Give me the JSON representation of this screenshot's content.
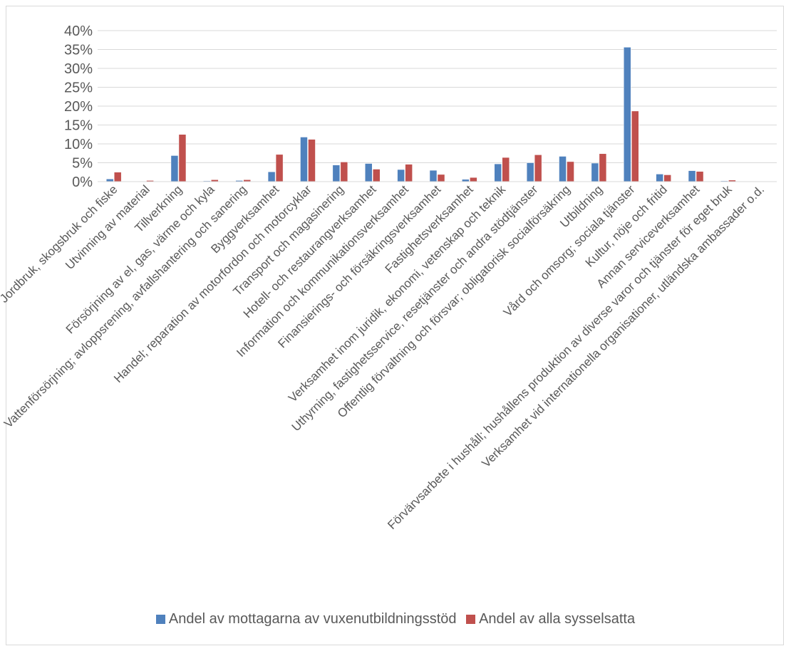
{
  "chart_data": {
    "type": "bar",
    "title": "",
    "xlabel": "",
    "ylabel": "",
    "ylim": [
      0,
      40
    ],
    "y_ticks": [
      "0%",
      "5%",
      "10%",
      "15%",
      "20%",
      "25%",
      "30%",
      "35%",
      "40%"
    ],
    "y_tick_values": [
      0,
      5,
      10,
      15,
      20,
      25,
      30,
      35,
      40
    ],
    "grid": true,
    "legend_position": "bottom",
    "categories": [
      "Jordbruk, skogsbruk och fiske",
      "Utvinning av material",
      "Tillverkning",
      "Försörjning av el, gas, värme och kyla",
      "Vattenförsörjning; avloppsrening, avfallshantering och sanering",
      "Byggverksamhet",
      "Handel; reparation av motorfordon och motorcyklar",
      "Transport och magasinering",
      "Hotell- och restaurangverksamhet",
      "Information och kommunikationsverksamhet",
      "Finansierings- och försäkringsverksamhet",
      "Fastighetsverksamhet",
      "Verksamhet inom juridik, ekonomi, vetenskap och teknik",
      "Uthyrning, fastighetsservice, resetjänster och andra stödtjänster",
      "Offentlig förvaltning och försvar; obligatorisk socialförsäkring",
      "Utbildning",
      "Vård och omsorg; sociala tjänster",
      "Kultur, nöje och fritid",
      "Annan serviceverksamhet",
      "Förvärvsarbete i hushåll; hushållens produktion av diverse varor och tjänster för eget bruk",
      "Verksamhet vid internationella organisationer, utländska ambassader o.d."
    ],
    "series": [
      {
        "name": "Andel av mottagarna av vuxenutbildningsstöd",
        "color": "#4f81bd",
        "values": [
          0.7,
          0.1,
          6.9,
          0.2,
          0.3,
          2.6,
          11.8,
          4.4,
          4.8,
          3.2,
          3.0,
          0.6,
          4.7,
          5.0,
          6.7,
          4.9,
          35.6,
          2.0,
          2.9,
          0.2,
          0.0
        ]
      },
      {
        "name": "Andel av alla sysselsatta",
        "color": "#c0504d",
        "values": [
          2.5,
          0.3,
          12.5,
          0.5,
          0.5,
          7.2,
          11.2,
          5.2,
          3.3,
          4.6,
          1.9,
          1.1,
          6.4,
          7.1,
          5.3,
          7.4,
          18.7,
          1.8,
          2.7,
          0.4,
          0.0
        ]
      }
    ]
  }
}
